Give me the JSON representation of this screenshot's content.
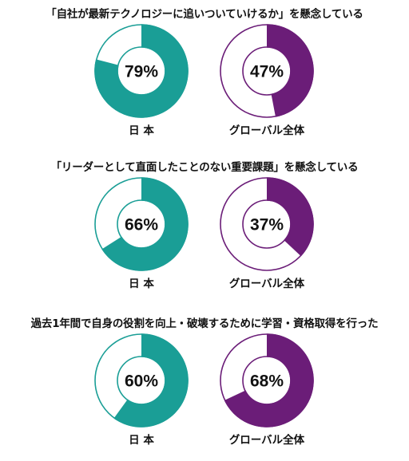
{
  "colors": {
    "japan": "#1a9e96",
    "global": "#6b1d78",
    "outline_japan": "#1a9e96",
    "outline_global": "#6b1d78"
  },
  "chart_data": [
    {
      "type": "pie",
      "title": "「自社が最新テクノロジーに追いついていけるか」を懸念している",
      "series": [
        {
          "name": "日 本",
          "values": [
            79
          ],
          "label": "79%"
        },
        {
          "name": "グローバル全体",
          "values": [
            47
          ],
          "label": "47%"
        }
      ]
    },
    {
      "type": "pie",
      "title": "「リーダーとして直面したことのない重要課題」を懸念している",
      "series": [
        {
          "name": "日 本",
          "values": [
            66
          ],
          "label": "66%"
        },
        {
          "name": "グローバル全体",
          "values": [
            37
          ],
          "label": "37%"
        }
      ]
    },
    {
      "type": "pie",
      "title": "過去1年間で自身の役割を向上・破壊するために学習・資格取得を行った",
      "series": [
        {
          "name": "日 本",
          "values": [
            60
          ],
          "label": "60%"
        },
        {
          "name": "グローバル全体",
          "values": [
            68
          ],
          "label": "68%"
        }
      ]
    }
  ]
}
